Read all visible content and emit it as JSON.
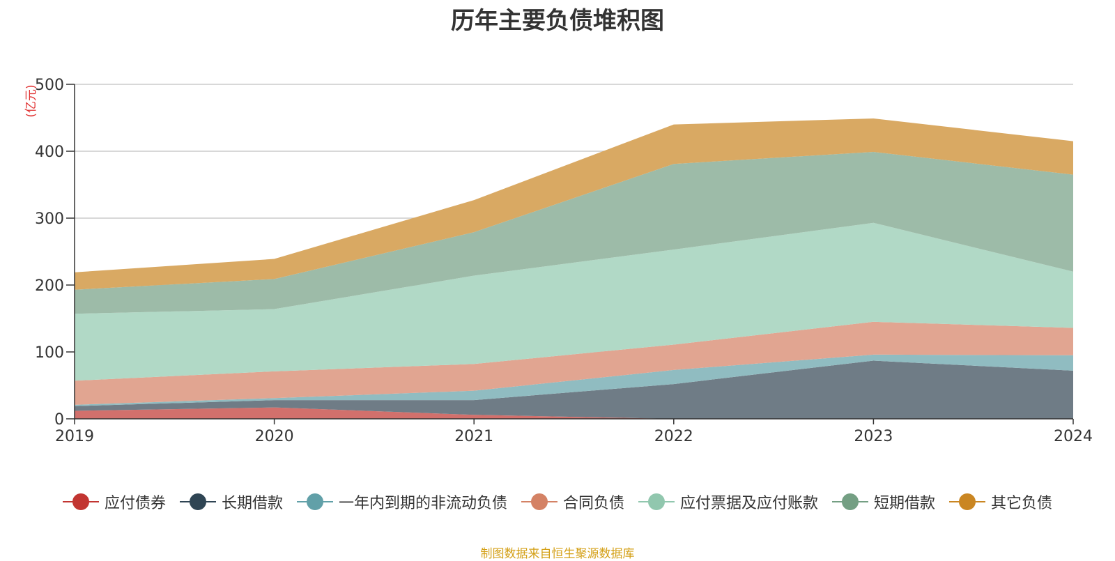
{
  "chart_data": {
    "type": "area",
    "stacked": true,
    "title": "历年主要负债堆积图",
    "unit": "(亿元)",
    "categories": [
      "2019",
      "2020",
      "2021",
      "2022",
      "2023",
      "2024"
    ],
    "y_ticks": [
      0,
      100,
      200,
      300,
      400,
      500
    ],
    "ylim": [
      0,
      500
    ],
    "grid": true,
    "legend_position": "bottom",
    "series": [
      {
        "name": "应付债券",
        "color": "#c23531",
        "fill": "#d2706c",
        "values": [
          12,
          17,
          6,
          0,
          0,
          0
        ]
      },
      {
        "name": "长期借款",
        "color": "#2f4554",
        "fill": "#6f7c86",
        "values": [
          7,
          11,
          22,
          52,
          87,
          72
        ]
      },
      {
        "name": "一年内到期的非流动负债",
        "color": "#61a0a8",
        "fill": "#90bcc1",
        "values": [
          2,
          3,
          14,
          21,
          9,
          23
        ]
      },
      {
        "name": "合同负债",
        "color": "#d48265",
        "fill": "#e1a591",
        "values": [
          36,
          40,
          40,
          38,
          49,
          41
        ]
      },
      {
        "name": "应付票据及应付账款",
        "color": "#91c7ae",
        "fill": "#b1d9c6",
        "values": [
          100,
          93,
          132,
          142,
          148,
          84
        ]
      },
      {
        "name": "短期借款",
        "color": "#749f83",
        "fill": "#9dbba8",
        "values": [
          36,
          45,
          65,
          128,
          106,
          145
        ]
      },
      {
        "name": "其它负债",
        "color": "#ca8622",
        "fill": "#d9a963",
        "values": [
          26,
          30,
          48,
          59,
          50,
          50
        ]
      }
    ]
  },
  "footer": {
    "source_note": "制图数据来自恒生聚源数据库",
    "source_color": "#d4a017"
  }
}
